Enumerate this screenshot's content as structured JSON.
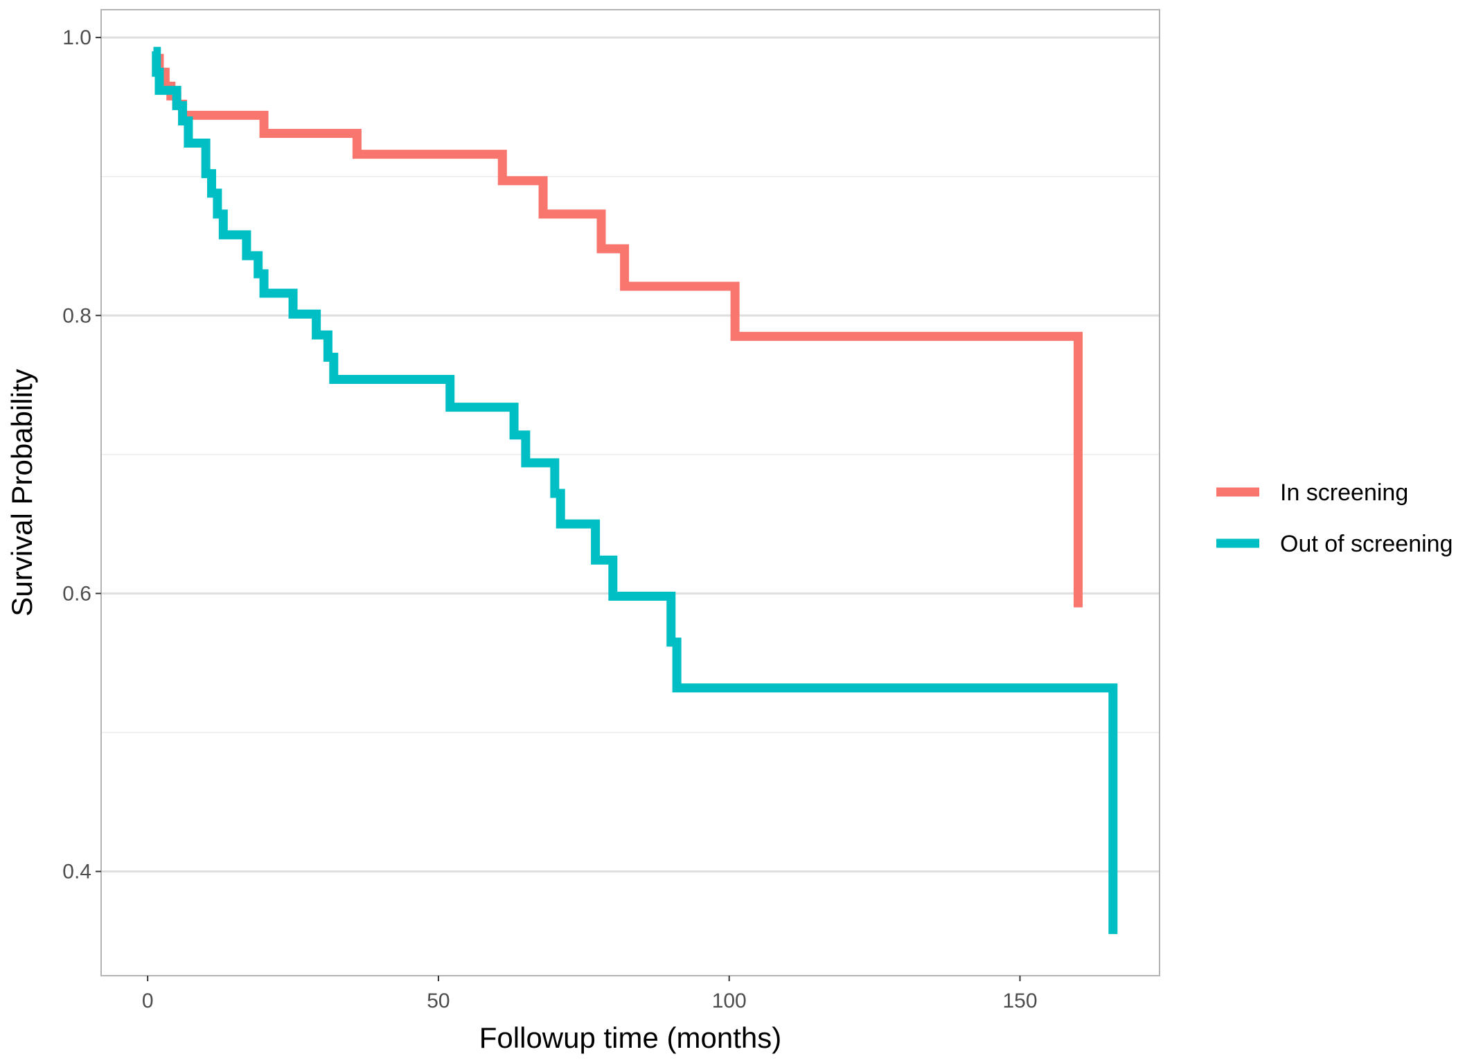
{
  "chart_data": {
    "type": "line",
    "step": true,
    "xlabel": "Followup time (months)",
    "ylabel": "Survival Probability",
    "xlim": [
      -8,
      174
    ],
    "ylim": [
      0.325,
      1.02
    ],
    "x_ticks": [
      0,
      50,
      100,
      150
    ],
    "x_tick_labels": [
      "0",
      "50",
      "100",
      "150"
    ],
    "y_ticks": [
      0.4,
      0.6,
      0.8,
      1.0
    ],
    "y_tick_labels": [
      "0.4",
      "0.6",
      "0.8",
      "1.0"
    ],
    "y_minor_ticks": [
      0.5,
      0.7,
      0.9
    ],
    "grid": true,
    "legend_position": "right",
    "series": [
      {
        "name": "In screening",
        "color": "#F8766D",
        "x": [
          1,
          2,
          3,
          4,
          5,
          6,
          20,
          36,
          61,
          68,
          78,
          82,
          101,
          160,
          160
        ],
        "y": [
          0.985,
          0.975,
          0.965,
          0.958,
          0.952,
          0.944,
          0.931,
          0.916,
          0.897,
          0.873,
          0.848,
          0.821,
          0.785,
          0.785,
          0.59
        ]
      },
      {
        "name": "Out of screening",
        "color": "#00BFC4",
        "x": [
          1,
          1.5,
          2,
          5,
          6,
          7,
          10,
          11,
          12,
          13,
          17,
          19,
          20,
          25,
          29,
          31,
          32,
          52,
          63,
          65,
          70,
          71,
          77,
          80,
          90,
          91,
          166,
          166
        ],
        "y": [
          0.99,
          0.975,
          0.962,
          0.951,
          0.94,
          0.924,
          0.902,
          0.888,
          0.873,
          0.858,
          0.843,
          0.83,
          0.816,
          0.801,
          0.786,
          0.77,
          0.754,
          0.734,
          0.714,
          0.694,
          0.672,
          0.65,
          0.624,
          0.598,
          0.565,
          0.532,
          0.532,
          0.355
        ]
      }
    ]
  }
}
